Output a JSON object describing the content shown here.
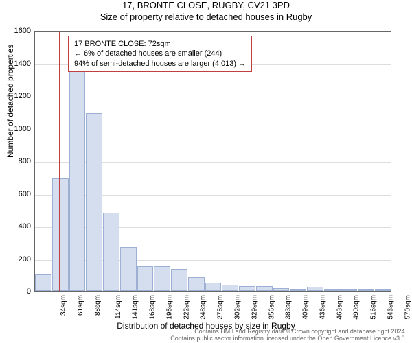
{
  "title": "17, BRONTE CLOSE, RUGBY, CV21 3PD",
  "subtitle": "Size of property relative to detached houses in Rugby",
  "chart": {
    "type": "histogram",
    "ylabel": "Number of detached properties",
    "xlabel": "Distribution of detached houses by size in Rugby",
    "ylim": [
      0,
      1600
    ],
    "ytick_step": 200,
    "yticks": [
      0,
      200,
      400,
      600,
      800,
      1000,
      1200,
      1400,
      1600
    ],
    "xticks": [
      "34sqm",
      "61sqm",
      "88sqm",
      "114sqm",
      "141sqm",
      "168sqm",
      "195sqm",
      "222sqm",
      "248sqm",
      "275sqm",
      "302sqm",
      "329sqm",
      "356sqm",
      "383sqm",
      "409sqm",
      "436sqm",
      "463sqm",
      "490sqm",
      "516sqm",
      "543sqm",
      "570sqm"
    ],
    "bars": [
      100,
      690,
      1400,
      1090,
      480,
      270,
      150,
      150,
      135,
      85,
      50,
      40,
      30,
      30,
      15,
      10,
      25,
      5,
      5,
      5,
      5
    ],
    "bar_color": "#d5deee",
    "bar_border_color": "#9db0d3",
    "background_color": "#ffffff",
    "grid_color": "#dddddd",
    "axis_color": "#666666",
    "marker_color": "#c04040",
    "marker_position_index": 1.4,
    "label_fontsize": 12,
    "tick_fontsize": 11
  },
  "annotation": {
    "line1": "17 BRONTE CLOSE: 72sqm",
    "line2": "← 6% of detached houses are smaller (244)",
    "line3": "94% of semi-detached houses are larger (4,013) →"
  },
  "footer": {
    "line1": "Contains HM Land Registry data © Crown copyright and database right 2024.",
    "line2": "Contains public sector information licensed under the Open Government Licence v3.0."
  }
}
